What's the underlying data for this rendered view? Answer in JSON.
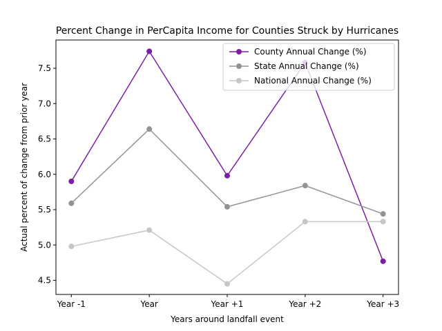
{
  "chart_data": {
    "type": "line",
    "title": "Percent Change in PerCapita Income for Counties Struck by Hurricanes",
    "xlabel": "Years around landfall event",
    "ylabel": "Actual percent of change from prior year",
    "categories": [
      "Year -1",
      "Year",
      "Year +1",
      "Year +2",
      "Year +3"
    ],
    "ylim": [
      4.3,
      7.9
    ],
    "yticks": [
      4.5,
      5.0,
      5.5,
      6.0,
      6.5,
      7.0,
      7.5
    ],
    "ytick_labels": [
      "4.5",
      "5.0",
      "5.5",
      "6.0",
      "6.5",
      "7.0",
      "7.5"
    ],
    "grid": false,
    "legend_position": "top-right",
    "series": [
      {
        "name": "County Annual Change (%)",
        "color": "#7b1fa2",
        "values": [
          5.9,
          7.74,
          5.98,
          7.58,
          4.77
        ]
      },
      {
        "name": "State Annual Change (%)",
        "color": "#939393",
        "values": [
          5.59,
          6.64,
          5.54,
          5.84,
          5.44
        ]
      },
      {
        "name": "National Annual Change (%)",
        "color": "#c6c6c6",
        "values": [
          4.98,
          5.21,
          4.45,
          5.33,
          5.33
        ]
      }
    ]
  }
}
